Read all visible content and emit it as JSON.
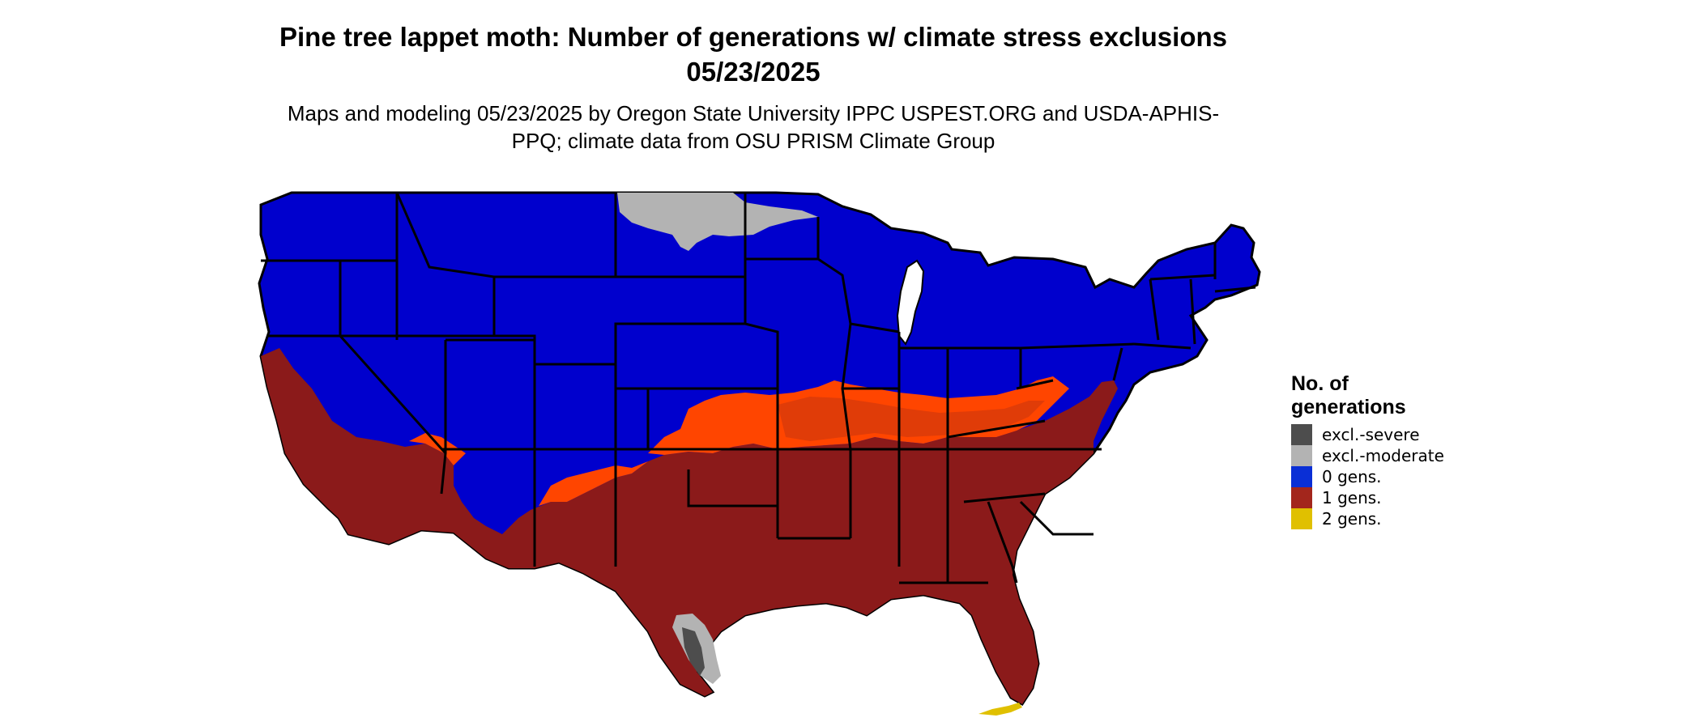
{
  "title": "Pine tree lappet moth: Number of generations w/ climate stress exclusions 05/23/2025",
  "subtitle": "Maps and modeling 05/23/2025 by Oregon State University IPPC USPEST.ORG and USDA-APHIS-PPQ; climate data from OSU PRISM Climate Group",
  "legend": {
    "title": "No. of generations",
    "items": [
      {
        "label": "excl.-severe",
        "color": "#4d4d4d"
      },
      {
        "label": "excl.-moderate",
        "color": "#b3b3b3"
      },
      {
        "label": "0 gens.",
        "color": "#0000cd"
      },
      {
        "label": "1 gens.",
        "color": "#8b1a1a"
      },
      {
        "label": "2 gens.",
        "color": "#e0c000"
      }
    ]
  },
  "colors": {
    "zero_gens": "#0000cd",
    "zero_gens_edge": "#1036d8",
    "one_gens": "#8b1a1a",
    "transition_orange": "#ff4500",
    "transition_dark_orange": "#e03c08",
    "excl_moderate": "#b3b3b3",
    "excl_severe": "#4d4d4d",
    "two_gens": "#e0c000",
    "state_border": "#000000"
  }
}
